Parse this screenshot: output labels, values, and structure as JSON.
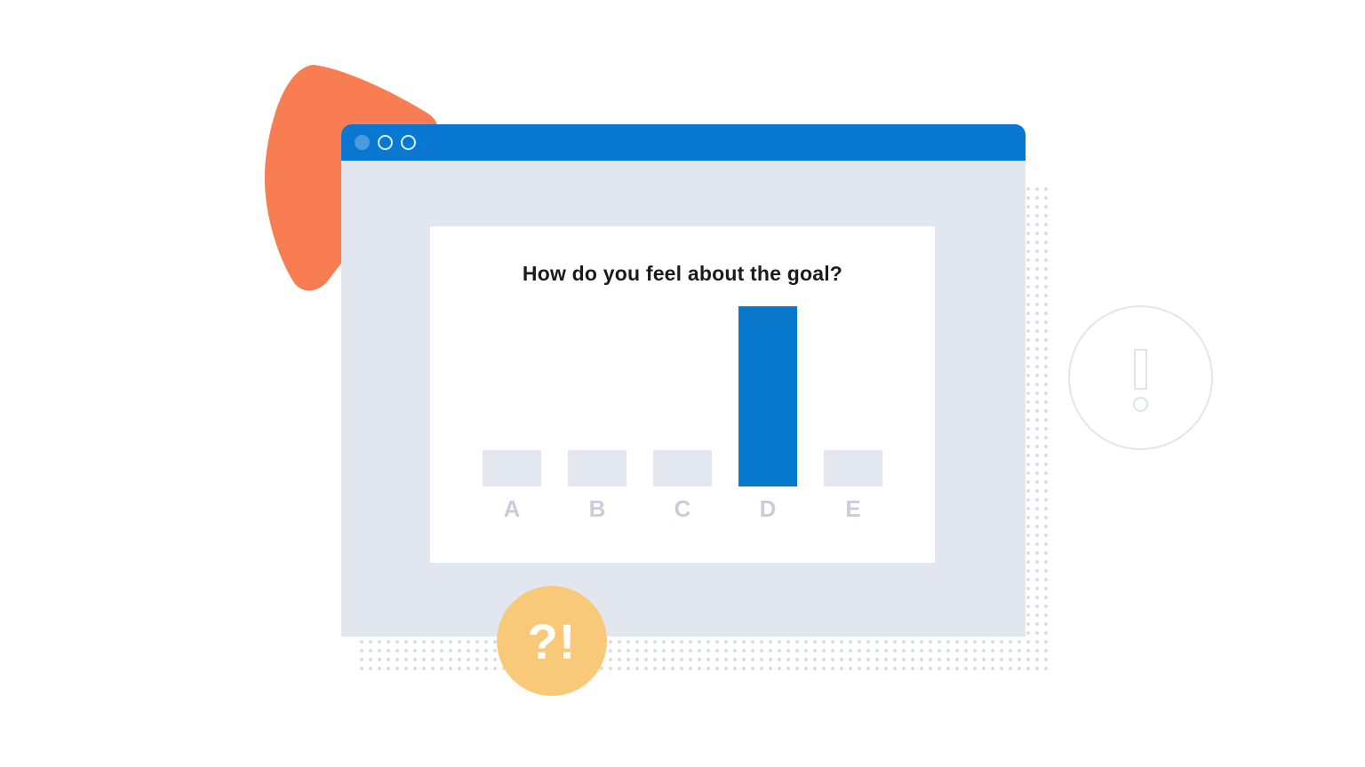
{
  "window": {
    "titlebar_color": "#0878d2",
    "traffic_lights": [
      {
        "icon": "filled-dot-icon",
        "style": "filled"
      },
      {
        "icon": "outline-dot-icon",
        "style": "outline"
      },
      {
        "icon": "outline-dot-icon",
        "style": "outline"
      }
    ]
  },
  "chart_data": {
    "type": "bar",
    "title": "How do you feel about the goal?",
    "categories": [
      "A",
      "B",
      "C",
      "D",
      "E"
    ],
    "values": [
      20,
      20,
      20,
      100,
      20
    ],
    "highlight_category": "D",
    "xlabel": "",
    "ylabel": "",
    "ylim": [
      0,
      100
    ],
    "grid": false,
    "legend": false,
    "bar_color_default": "#e3e8f0",
    "bar_color_highlight": "#0878cd",
    "label_color": "#c7ceda"
  },
  "badge": {
    "label": "?!",
    "color": "#f9c97a",
    "icon": "question-exclamation-badge"
  },
  "decorations": {
    "alert_icon": "exclamation-circle-icon",
    "blob_color": "#f97d53",
    "dot_pattern_color": "#d9dde3"
  }
}
